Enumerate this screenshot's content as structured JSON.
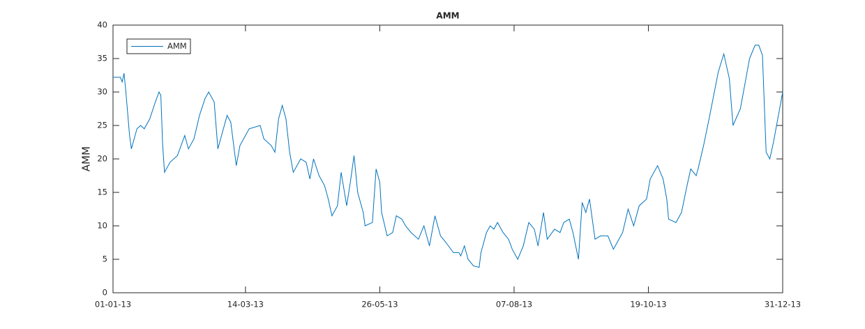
{
  "chart_data": {
    "type": "line",
    "title": "AMM",
    "y_label": "AMM",
    "x": [
      "01-01-13",
      "05-01-13",
      "06-01-13",
      "07-01-13",
      "08-01-13",
      "10-01-13",
      "11-01-13",
      "14-01-13",
      "16-01-13",
      "18-01-13",
      "21-01-13",
      "24-01-13",
      "26-01-13",
      "27-01-13",
      "28-01-13",
      "29-01-13",
      "01-02-13",
      "05-02-13",
      "09-02-13",
      "11-02-13",
      "14-02-13",
      "17-02-13",
      "20-02-13",
      "22-02-13",
      "25-02-13",
      "27-02-13",
      "01-03-13",
      "04-03-13",
      "06-03-13",
      "09-03-13",
      "11-03-13",
      "14-03-13",
      "16-03-13",
      "22-03-13",
      "24-03-13",
      "28-03-13",
      "30-03-13",
      "01-04-13",
      "03-04-13",
      "05-04-13",
      "07-04-13",
      "09-04-13",
      "13-04-13",
      "16-04-13",
      "18-04-13",
      "20-04-13",
      "23-04-13",
      "26-04-13",
      "28-04-13",
      "30-04-13",
      "03-05-13",
      "05-05-13",
      "08-05-13",
      "10-05-13",
      "12-05-13",
      "14-05-13",
      "17-05-13",
      "18-05-13",
      "22-05-13",
      "24-05-13",
      "26-05-13",
      "27-05-13",
      "30-05-13",
      "02-06-13",
      "04-06-13",
      "07-06-13",
      "09-06-13",
      "12-06-13",
      "16-06-13",
      "19-06-13",
      "22-06-13",
      "25-06-13",
      "28-06-13",
      "01-07-13",
      "05-07-13",
      "08-07-13",
      "09-07-13",
      "11-07-13",
      "13-07-13",
      "16-07-13",
      "19-07-13",
      "20-07-13",
      "23-07-13",
      "25-07-13",
      "27-07-13",
      "29-07-13",
      "01-08-13",
      "04-08-13",
      "06-08-13",
      "09-08-13",
      "12-08-13",
      "15-08-13",
      "18-08-13",
      "20-08-13",
      "23-08-13",
      "25-08-13",
      "29-08-13",
      "01-09-13",
      "03-09-13",
      "06-09-13",
      "08-09-13",
      "11-09-13",
      "13-09-13",
      "15-09-13",
      "17-09-13",
      "20-09-13",
      "23-09-13",
      "27-09-13",
      "30-09-13",
      "02-10-13",
      "05-10-13",
      "08-10-13",
      "11-10-13",
      "14-10-13",
      "18-10-13",
      "20-10-13",
      "24-10-13",
      "27-10-13",
      "29-10-13",
      "30-10-13",
      "03-11-13",
      "06-11-13",
      "09-11-13",
      "11-11-13",
      "14-11-13",
      "15-11-13",
      "18-11-13",
      "21-11-13",
      "26-11-13",
      "29-11-13",
      "02-12-13",
      "04-12-13",
      "08-12-13",
      "11-12-13",
      "13-12-13",
      "16-12-13",
      "18-12-13",
      "20-12-13",
      "22-12-13",
      "24-12-13",
      "26-12-13",
      "29-12-13",
      "31-12-13"
    ],
    "series": [
      {
        "name": "AMM",
        "color": "#0072bd",
        "values": [
          32.2,
          32.2,
          31.5,
          32.8,
          30,
          23.5,
          21.5,
          24.5,
          25,
          24.5,
          26,
          28.5,
          30,
          29.5,
          22,
          18,
          19.5,
          20.5,
          23.5,
          21.5,
          23,
          26.5,
          29,
          30,
          28.5,
          21.5,
          23.5,
          26.5,
          25.5,
          19,
          22,
          23.5,
          24.5,
          25,
          23,
          22,
          21,
          26,
          28,
          26,
          21,
          18,
          20,
          19.5,
          17,
          20,
          17.5,
          16,
          14,
          11.5,
          13,
          18,
          13,
          16.5,
          20.5,
          15,
          12,
          10,
          10.5,
          18.5,
          16.5,
          12,
          8.5,
          9,
          11.5,
          11,
          10,
          9,
          8,
          10,
          7,
          11.5,
          8.5,
          7.5,
          6,
          6,
          5.5,
          7,
          5,
          4,
          3.8,
          6,
          9,
          10,
          9.5,
          10.5,
          9,
          8,
          6.5,
          5,
          7,
          10.5,
          9.5,
          7,
          12,
          8,
          9.5,
          9,
          10.5,
          11,
          9,
          5,
          13.5,
          12,
          14,
          8,
          8.5,
          8.5,
          6.5,
          7.5,
          9,
          12.5,
          10,
          13,
          14,
          17,
          19,
          17,
          14,
          11,
          10.5,
          12,
          16,
          18.5,
          17.5,
          18.5,
          22,
          26,
          33,
          35.7,
          32,
          25,
          27.5,
          32,
          35,
          37,
          37,
          35.5,
          21,
          20,
          22.5,
          27,
          30
        ]
      }
    ],
    "xlim": [
      "01-01-13",
      "31-12-13"
    ],
    "xticks": [
      "01-01-13",
      "14-03-13",
      "26-05-13",
      "07-08-13",
      "19-10-13",
      "31-12-13"
    ],
    "ylim": [
      0,
      40
    ],
    "yticks": [
      0,
      5,
      10,
      15,
      20,
      25,
      30,
      35,
      40
    ],
    "grid": false,
    "legend": "upper left"
  }
}
